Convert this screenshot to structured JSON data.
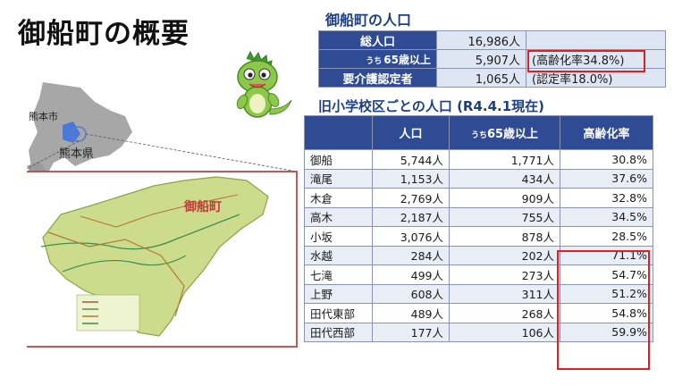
{
  "title": "御船町の概要",
  "population": {
    "section_title": "御船町の人口",
    "rows": [
      {
        "label": "総人口",
        "value": "16,986人",
        "note": ""
      },
      {
        "label_prefix": "うち",
        "label": "65歳以上",
        "value": "5,907人",
        "note": "(高齢化率34.8%)"
      },
      {
        "label": "要介護認定者",
        "value": "1,065人",
        "note": "(認定率18.0%)"
      }
    ]
  },
  "districts": {
    "section_title": "旧小学校区ごとの人口 (R4.4.1現在)",
    "headers": {
      "area": "",
      "population": "人口",
      "elderly_prefix": "うち",
      "elderly": "65歳以上",
      "rate": "高齢化率"
    },
    "rows": [
      {
        "area": "御船",
        "population": "5,744人",
        "elderly": "1,771人",
        "rate": "30.8%"
      },
      {
        "area": "滝尾",
        "population": "1,153人",
        "elderly": "434人",
        "rate": "37.6%"
      },
      {
        "area": "木倉",
        "population": "2,769人",
        "elderly": "909人",
        "rate": "32.8%"
      },
      {
        "area": "高木",
        "population": "2,187人",
        "elderly": "755人",
        "rate": "34.5%"
      },
      {
        "area": "小坂",
        "population": "3,076人",
        "elderly": "878人",
        "rate": "28.5%"
      },
      {
        "area": "水越",
        "population": "284人",
        "elderly": "202人",
        "rate": "71.1%"
      },
      {
        "area": "七滝",
        "population": "499人",
        "elderly": "273人",
        "rate": "54.7%"
      },
      {
        "area": "上野",
        "population": "608人",
        "elderly": "311人",
        "rate": "51.2%"
      },
      {
        "area": "田代東部",
        "population": "489人",
        "elderly": "268人",
        "rate": "54.8%"
      },
      {
        "area": "田代西部",
        "population": "177人",
        "elderly": "106人",
        "rate": "59.9%"
      }
    ]
  },
  "map": {
    "city_label": "熊本市",
    "prefecture_label": "熊本県",
    "town_label": "御船町"
  },
  "colors": {
    "header_blue": "#2e4b93",
    "title_blue": "#1d3f86",
    "highlight_red": "#e02020",
    "town_green": "#cddc8c",
    "mascot_green": "#7fc241"
  }
}
